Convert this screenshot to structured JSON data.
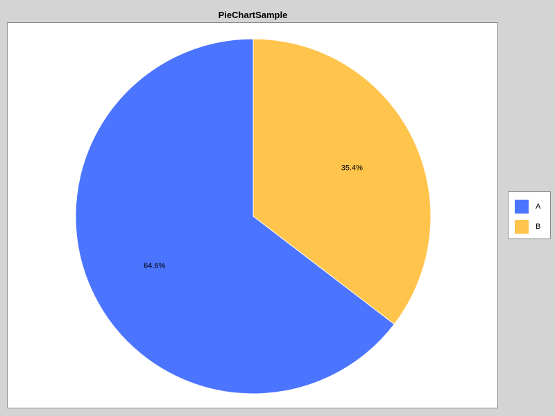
{
  "chart_data": {
    "type": "pie",
    "title": "PieChartSample",
    "slices": [
      {
        "label": "A",
        "value": 64.6,
        "display": "64.6%",
        "color": "#4b74ff"
      },
      {
        "label": "B",
        "value": 35.4,
        "display": "35.4%",
        "color": "#ffc44b"
      }
    ],
    "start_angle": "12 o'clock",
    "direction": "clockwise",
    "legend_position": "right",
    "slice_border_color": "#ffffff"
  }
}
